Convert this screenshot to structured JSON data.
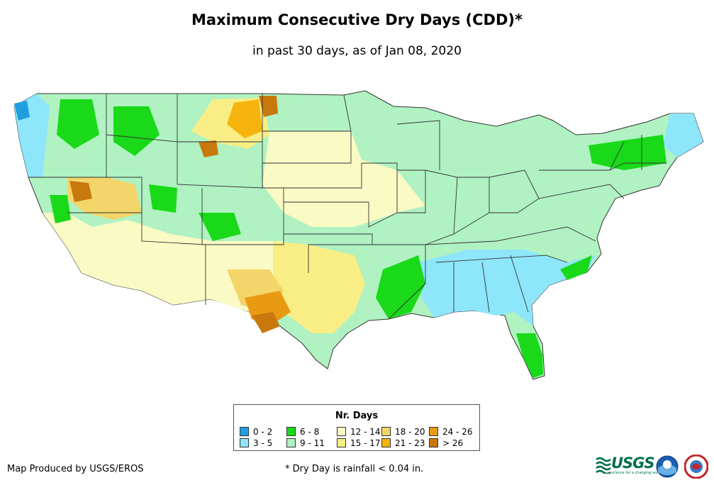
{
  "title": "Maximum Consecutive Dry Days (CDD)*",
  "subtitle": "in past 30 days, as of Jan 08, 2020",
  "legend": {
    "title": "Nr. Days",
    "items": [
      {
        "label": "0 - 2",
        "color": "#1f9fe0"
      },
      {
        "label": "3 - 5",
        "color": "#8ee6fa"
      },
      {
        "label": "6 - 8",
        "color": "#19d919"
      },
      {
        "label": "9 - 11",
        "color": "#b0f2c2"
      },
      {
        "label": "12 - 14",
        "color": "#fafac4"
      },
      {
        "label": "15 - 17",
        "color": "#f9ee85"
      },
      {
        "label": "18 - 20",
        "color": "#f3d56a"
      },
      {
        "label": "21 - 23",
        "color": "#f5b40e"
      },
      {
        "label": "24 - 26",
        "color": "#e99a13"
      },
      {
        "label": "> 26",
        "color": "#c8780d"
      }
    ]
  },
  "footer": {
    "producer": "Map Produced by USGS/EROS",
    "footnote": "* Dry Day is rainfall < 0.04 in.",
    "usgs_logo": "USGS",
    "usgs_tagline": "science for a changing world"
  },
  "icons": [
    "usgs-logo-icon",
    "noaa-logo-icon",
    "nws-logo-icon"
  ]
}
